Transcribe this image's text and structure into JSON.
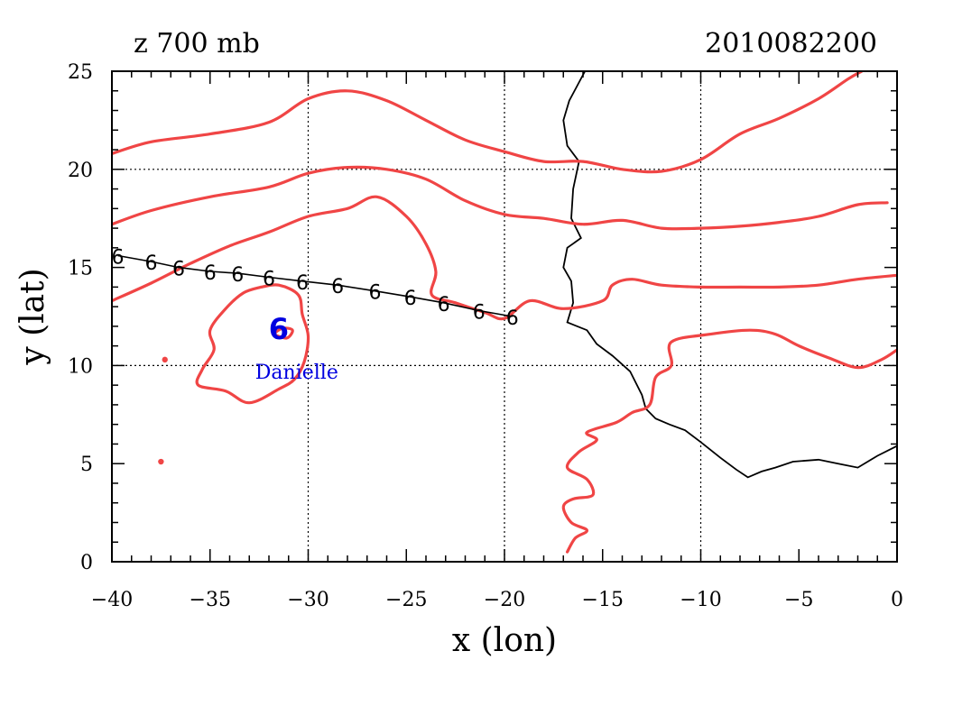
{
  "title_left": "z 700 mb",
  "title_right": "2010082200",
  "colors": {
    "contour": "#f04545",
    "coast": "#000000",
    "track": "#000000",
    "storm": "#0000e0",
    "grid": "#000000"
  },
  "icons": {
    "track_marker": "hurricane-symbol-icon",
    "storm_marker": "hurricane-symbol-icon"
  },
  "chart_data": {
    "type": "map",
    "xlabel": "x (lon)",
    "ylabel": "y (lat)",
    "xlim": [
      -40,
      0
    ],
    "ylim": [
      0,
      25
    ],
    "xticks": [
      -40,
      -35,
      -30,
      -25,
      -20,
      -15,
      -10,
      -5,
      0
    ],
    "yticks": [
      0,
      5,
      10,
      15,
      20,
      25
    ],
    "grid": {
      "x": [
        -30,
        -20,
        -10
      ],
      "y": [
        10,
        20
      ],
      "style": "dotted"
    },
    "track_symbol": "6",
    "track": [
      [
        -39.7,
        15.6
      ],
      [
        -38.0,
        15.3
      ],
      [
        -36.6,
        15.0
      ],
      [
        -35.0,
        14.8
      ],
      [
        -33.6,
        14.7
      ],
      [
        -32.0,
        14.5
      ],
      [
        -30.3,
        14.3
      ],
      [
        -28.5,
        14.1
      ],
      [
        -26.6,
        13.8
      ],
      [
        -24.8,
        13.5
      ],
      [
        -23.1,
        13.2
      ],
      [
        -21.3,
        12.8
      ],
      [
        -19.6,
        12.5
      ]
    ],
    "storm": {
      "name": "Danielle",
      "symbol": "6",
      "lon": -31.5,
      "lat": 11.9,
      "label_lon": -32.7,
      "label_lat": 9.7
    },
    "contours": [
      [
        [
          -40,
          20.8
        ],
        [
          -38,
          21.4
        ],
        [
          -35,
          21.8
        ],
        [
          -32,
          22.4
        ],
        [
          -30,
          23.6
        ],
        [
          -28,
          24.0
        ],
        [
          -26,
          23.5
        ],
        [
          -24,
          22.5
        ],
        [
          -22,
          21.5
        ],
        [
          -20,
          20.9
        ],
        [
          -18,
          20.4
        ],
        [
          -16,
          20.4
        ],
        [
          -14,
          20.0
        ],
        [
          -12,
          19.9
        ],
        [
          -10,
          20.5
        ],
        [
          -8,
          21.8
        ],
        [
          -6,
          22.6
        ],
        [
          -4,
          23.6
        ],
        [
          -2.5,
          24.6
        ],
        [
          -1.8,
          25
        ]
      ],
      [
        [
          -40,
          17.2
        ],
        [
          -38,
          17.9
        ],
        [
          -35,
          18.6
        ],
        [
          -32,
          19.1
        ],
        [
          -30,
          19.8
        ],
        [
          -28,
          20.1
        ],
        [
          -26,
          20.0
        ],
        [
          -24,
          19.5
        ],
        [
          -22,
          18.4
        ],
        [
          -20,
          17.7
        ],
        [
          -18,
          17.5
        ],
        [
          -16,
          17.2
        ],
        [
          -14,
          17.4
        ],
        [
          -12,
          17.0
        ],
        [
          -10,
          17.0
        ],
        [
          -8,
          17.1
        ],
        [
          -6,
          17.3
        ],
        [
          -4,
          17.6
        ],
        [
          -2,
          18.2
        ],
        [
          -0.5,
          18.3
        ]
      ],
      [
        [
          -40,
          13.3
        ],
        [
          -38,
          14.2
        ],
        [
          -36,
          15.2
        ],
        [
          -34,
          16.1
        ],
        [
          -32,
          16.8
        ],
        [
          -30,
          17.6
        ],
        [
          -28,
          18.0
        ],
        [
          -26.5,
          18.6
        ],
        [
          -25,
          17.6
        ],
        [
          -24,
          16.2
        ],
        [
          -23.5,
          14.8
        ],
        [
          -23.7,
          13.6
        ],
        [
          -22.5,
          13.2
        ],
        [
          -21,
          12.7
        ],
        [
          -20,
          12.4
        ],
        [
          -18.7,
          13.3
        ],
        [
          -17,
          12.9
        ],
        [
          -15,
          13.3
        ],
        [
          -14.5,
          14.1
        ],
        [
          -13.5,
          14.4
        ],
        [
          -12,
          14.1
        ],
        [
          -10,
          14.0
        ],
        [
          -8,
          14.0
        ],
        [
          -6,
          14.0
        ],
        [
          -4,
          14.1
        ],
        [
          -2,
          14.4
        ],
        [
          0,
          14.6
        ]
      ],
      [
        [
          -16.8,
          0.5
        ],
        [
          -16.4,
          1.2
        ],
        [
          -15.8,
          1.6
        ],
        [
          -16.6,
          2.0
        ],
        [
          -17.0,
          2.8
        ],
        [
          -16.5,
          3.2
        ],
        [
          -15.5,
          3.4
        ],
        [
          -15.8,
          4.2
        ],
        [
          -16.8,
          4.8
        ],
        [
          -16.2,
          5.6
        ],
        [
          -15.3,
          6.2
        ],
        [
          -15.8,
          6.6
        ],
        [
          -14.3,
          7.1
        ],
        [
          -13.5,
          7.6
        ],
        [
          -12.6,
          8.0
        ],
        [
          -12.3,
          9.4
        ],
        [
          -11.5,
          10.0
        ],
        [
          -11.5,
          11.2
        ],
        [
          -9.5,
          11.6
        ],
        [
          -7.5,
          11.8
        ],
        [
          -6.2,
          11.6
        ],
        [
          -5.0,
          11.0
        ],
        [
          -3.5,
          10.4
        ],
        [
          -2.0,
          9.9
        ],
        [
          -0.8,
          10.3
        ],
        [
          0,
          10.8
        ]
      ],
      [
        [
          -32.4,
          14.0
        ],
        [
          -31.5,
          14.1
        ],
        [
          -30.5,
          13.6
        ],
        [
          -30.3,
          12.6
        ],
        [
          -30.0,
          11.5
        ],
        [
          -30.2,
          10.2
        ],
        [
          -30.7,
          9.3
        ],
        [
          -31.5,
          8.8
        ],
        [
          -33.0,
          8.1
        ],
        [
          -34.2,
          8.7
        ],
        [
          -35.6,
          9.0
        ],
        [
          -35.4,
          9.8
        ],
        [
          -34.8,
          10.8
        ],
        [
          -35.0,
          11.8
        ],
        [
          -34.2,
          12.9
        ],
        [
          -33.3,
          13.7
        ],
        [
          -32.4,
          14.0
        ]
      ],
      [
        [
          -31.8,
          11.6
        ],
        [
          -31.3,
          11.9
        ],
        [
          -30.8,
          11.8
        ],
        [
          -31.1,
          11.4
        ],
        [
          -31.8,
          11.6
        ]
      ]
    ],
    "contour_dots": [
      [
        -37.3,
        10.3
      ],
      [
        -37.5,
        5.1
      ]
    ],
    "coastline": [
      [
        -15.9,
        25
      ],
      [
        -16.7,
        23.5
      ],
      [
        -17.0,
        22.5
      ],
      [
        -16.8,
        21.2
      ],
      [
        -16.2,
        20.4
      ],
      [
        -16.5,
        19.0
      ],
      [
        -16.6,
        17.5
      ],
      [
        -16.1,
        16.5
      ],
      [
        -16.8,
        16.0
      ],
      [
        -17.0,
        15.0
      ],
      [
        -16.6,
        14.3
      ],
      [
        -16.5,
        13.2
      ],
      [
        -16.8,
        12.2
      ],
      [
        -15.8,
        11.8
      ],
      [
        -15.3,
        11.1
      ],
      [
        -14.5,
        10.5
      ],
      [
        -13.6,
        9.7
      ],
      [
        -13.0,
        8.5
      ],
      [
        -12.8,
        7.8
      ],
      [
        -12.3,
        7.3
      ],
      [
        -11.6,
        7.0
      ],
      [
        -10.8,
        6.7
      ],
      [
        -10.0,
        6.1
      ],
      [
        -9.0,
        5.3
      ],
      [
        -8.2,
        4.7
      ],
      [
        -7.6,
        4.3
      ],
      [
        -6.9,
        4.6
      ],
      [
        -6.2,
        4.8
      ],
      [
        -5.3,
        5.1
      ],
      [
        -4.0,
        5.2
      ],
      [
        -3.0,
        5.0
      ],
      [
        -2.0,
        4.8
      ],
      [
        -1.0,
        5.4
      ],
      [
        0,
        5.9
      ]
    ]
  }
}
